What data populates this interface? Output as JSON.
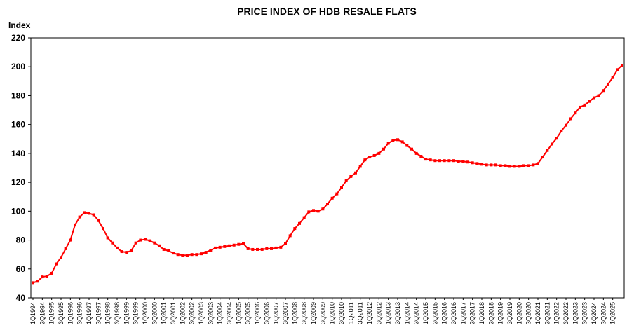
{
  "chart_data": {
    "type": "line",
    "title": "PRICE INDEX OF HDB RESALE FLATS",
    "xlabel": "",
    "ylabel": "Index",
    "ylim": [
      40,
      220
    ],
    "yticks": [
      40,
      60,
      80,
      100,
      120,
      140,
      160,
      180,
      200,
      220
    ],
    "grid": false,
    "legend": "none",
    "line_color": "#ff0000",
    "x_start": "1Q1994",
    "x_end": "1Q2025",
    "x_tick_labels": [
      "1Q1994",
      "3Q1994",
      "1Q1995",
      "3Q1995",
      "1Q1996",
      "3Q1996",
      "1Q1997",
      "3Q1997",
      "1Q1998",
      "3Q1998",
      "1Q1999",
      "3Q1999",
      "1Q2000",
      "3Q2000",
      "1Q2001",
      "3Q2001",
      "1Q2002",
      "3Q2002",
      "1Q2003",
      "3Q2003",
      "1Q2004",
      "3Q2004",
      "1Q2005",
      "3Q2005",
      "1Q2006",
      "3Q2006",
      "1Q2007",
      "3Q2007",
      "1Q2008",
      "3Q2008",
      "1Q2009",
      "3Q2009",
      "1Q2010",
      "3Q2010",
      "1Q2011",
      "3Q2011",
      "1Q2012",
      "3Q2012",
      "1Q2013",
      "3Q2013",
      "1Q2014",
      "3Q2014",
      "1Q2015",
      "3Q2015",
      "1Q2016",
      "3Q2016",
      "1Q2017",
      "3Q2017",
      "1Q2018",
      "3Q2018",
      "1Q2019",
      "3Q2019",
      "1Q2020",
      "3Q2020",
      "1Q2021",
      "3Q2021",
      "1Q2022",
      "3Q2022",
      "1Q2023",
      "3Q2023",
      "1Q2024",
      "3Q2024",
      "1Q2025"
    ],
    "series": [
      {
        "values": [
          50.5,
          51.5,
          54.5,
          55,
          57,
          63.5,
          68,
          74,
          80,
          90.5,
          96,
          99,
          98.5,
          97.5,
          93.5,
          88,
          81.5,
          78,
          74.5,
          72,
          71.5,
          72.5,
          78,
          80,
          80.5,
          79.5,
          78,
          76,
          73.5,
          72.5,
          71,
          70,
          69.5,
          69.5,
          70,
          70,
          70.5,
          71.5,
          73,
          74.5,
          75,
          75.5,
          76,
          76.5,
          77,
          77.5,
          74,
          73.5,
          73.5,
          73.5,
          74,
          74,
          74.5,
          75,
          77.5,
          83,
          88,
          91.5,
          95.5,
          99.5,
          100.5,
          100,
          101.5,
          105,
          109,
          112,
          116.5,
          121,
          124,
          126.5,
          131,
          135.5,
          137.5,
          138.5,
          140,
          143,
          147,
          149,
          149.5,
          148,
          145.5,
          143,
          140,
          138,
          136,
          135.5,
          135,
          135,
          135,
          135,
          135,
          134.5,
          134.5,
          134,
          133.5,
          133,
          132.5,
          132,
          132,
          132,
          131.5,
          131.5,
          131,
          131,
          131,
          131.5,
          131.5,
          132,
          133,
          137.5,
          142,
          146.5,
          150.5,
          155.5,
          159.5,
          164,
          168,
          172,
          173.5,
          176,
          178.5,
          180,
          183.5,
          188,
          192.5,
          198,
          201
        ]
      }
    ]
  }
}
